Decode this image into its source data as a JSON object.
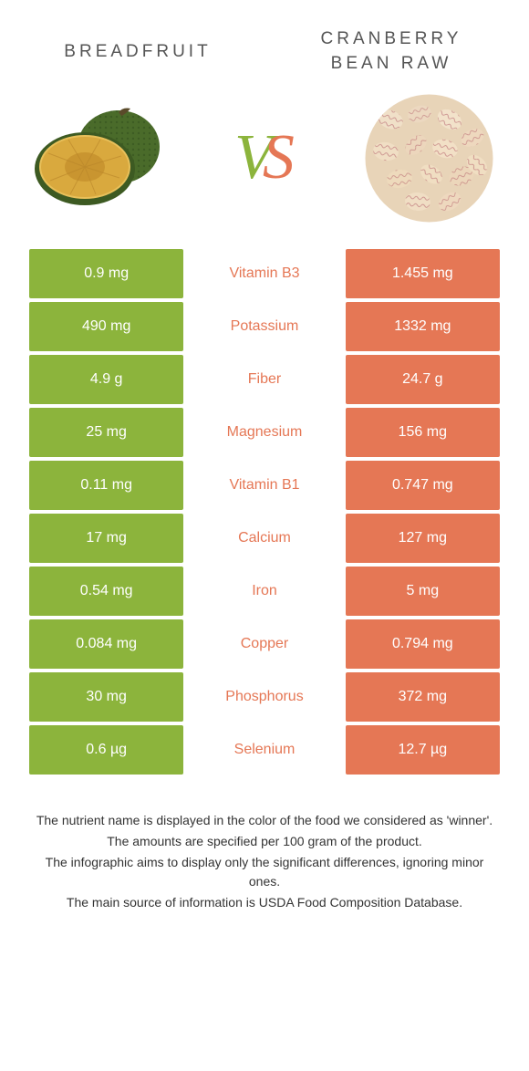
{
  "titles": {
    "left": "BREADFRUIT",
    "right": "CRANBERRY BEAN RAW"
  },
  "vs": {
    "v": "V",
    "s": "S"
  },
  "colors": {
    "left": "#8cb43c",
    "right": "#e57755",
    "vs_v": "#8cb43c",
    "vs_s": "#e57755"
  },
  "nutrients": [
    {
      "name": "Vitamin B3",
      "left": "0.9 mg",
      "right": "1.455 mg",
      "winner": "right"
    },
    {
      "name": "Potassium",
      "left": "490 mg",
      "right": "1332 mg",
      "winner": "right"
    },
    {
      "name": "Fiber",
      "left": "4.9 g",
      "right": "24.7 g",
      "winner": "right"
    },
    {
      "name": "Magnesium",
      "left": "25 mg",
      "right": "156 mg",
      "winner": "right"
    },
    {
      "name": "Vitamin B1",
      "left": "0.11 mg",
      "right": "0.747 mg",
      "winner": "right"
    },
    {
      "name": "Calcium",
      "left": "17 mg",
      "right": "127 mg",
      "winner": "right"
    },
    {
      "name": "Iron",
      "left": "0.54 mg",
      "right": "5 mg",
      "winner": "right"
    },
    {
      "name": "Copper",
      "left": "0.084 mg",
      "right": "0.794 mg",
      "winner": "right"
    },
    {
      "name": "Phosphorus",
      "left": "30 mg",
      "right": "372 mg",
      "winner": "right"
    },
    {
      "name": "Selenium",
      "left": "0.6 µg",
      "right": "12.7 µg",
      "winner": "right"
    }
  ],
  "footer": [
    "The nutrient name is displayed in the color of the food we considered as 'winner'.",
    "The amounts are specified per 100 gram of the product.",
    "The infographic aims to display only the significant differences, ignoring minor ones.",
    "The main source of information is USDA Food Composition Database."
  ]
}
